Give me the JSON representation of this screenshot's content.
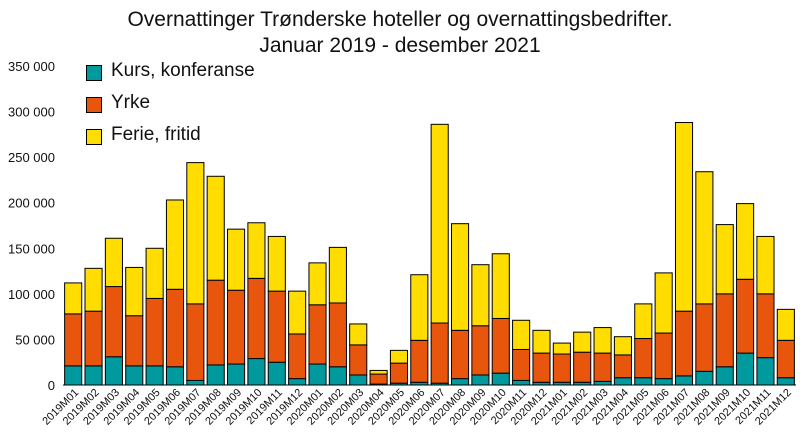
{
  "chart_data": {
    "type": "bar",
    "stacked": true,
    "title": "Overnattinger Trønderske hoteller og overnattingsbedrifter.",
    "subtitle": "Januar 2019 - desember 2021",
    "xlabel": "",
    "ylabel": "",
    "ylim": [
      0,
      350000
    ],
    "yticks": [
      0,
      50000,
      100000,
      150000,
      200000,
      250000,
      300000,
      350000
    ],
    "ytick_labels": [
      "0",
      "50 000",
      "100 000",
      "150 000",
      "200 000",
      "250 000",
      "300 000",
      "350 000"
    ],
    "grid": false,
    "legend_position": "top-left",
    "categories": [
      "2019M01",
      "2019M02",
      "2019M03",
      "2019M04",
      "2019M05",
      "2019M06",
      "2019M07",
      "2019M08",
      "2019M09",
      "2019M10",
      "2019M11",
      "2019M12",
      "2020M01",
      "2020M02",
      "2020M03",
      "2020M04",
      "2020M05",
      "2020M06",
      "2020M07",
      "2020M08",
      "2020M09",
      "2020M10",
      "2020M11",
      "2020M12",
      "2021M01",
      "2021M02",
      "2021M03",
      "2021M04",
      "2021M05",
      "2021M06",
      "2021M07",
      "2021M08",
      "2021M09",
      "2021M10",
      "2021M11",
      "2021M12"
    ],
    "series": [
      {
        "name": "Kurs, konferanse",
        "color": "#00999e",
        "values": [
          21000,
          21000,
          31000,
          21000,
          21000,
          20000,
          5000,
          22000,
          23000,
          29000,
          25000,
          7000,
          23000,
          20000,
          11000,
          1000,
          2000,
          3000,
          2000,
          7000,
          11000,
          13000,
          5000,
          3000,
          3000,
          3000,
          4000,
          8000,
          8000,
          7000,
          10000,
          15000,
          20000,
          35000,
          30000,
          8000
        ]
      },
      {
        "name": "Yrke",
        "color": "#e8560e",
        "values": [
          57000,
          60000,
          77000,
          55000,
          74000,
          85000,
          84000,
          93000,
          81000,
          88000,
          78000,
          49000,
          65000,
          70000,
          33000,
          11000,
          22000,
          46000,
          66000,
          53000,
          54000,
          60000,
          34000,
          32000,
          31000,
          33000,
          31000,
          25000,
          43000,
          50000,
          71000,
          74000,
          80000,
          81000,
          70000,
          41000
        ]
      },
      {
        "name": "Ferie, fritid",
        "color": "#ffdd00",
        "values": [
          34000,
          47000,
          53000,
          53000,
          55000,
          98000,
          155000,
          114000,
          67000,
          61000,
          60000,
          47000,
          46000,
          61000,
          23000,
          4000,
          14000,
          72000,
          218000,
          117000,
          67000,
          71000,
          32000,
          25000,
          12000,
          22000,
          28000,
          20000,
          38000,
          66000,
          207000,
          145000,
          76000,
          83000,
          63000,
          34000
        ]
      }
    ]
  }
}
